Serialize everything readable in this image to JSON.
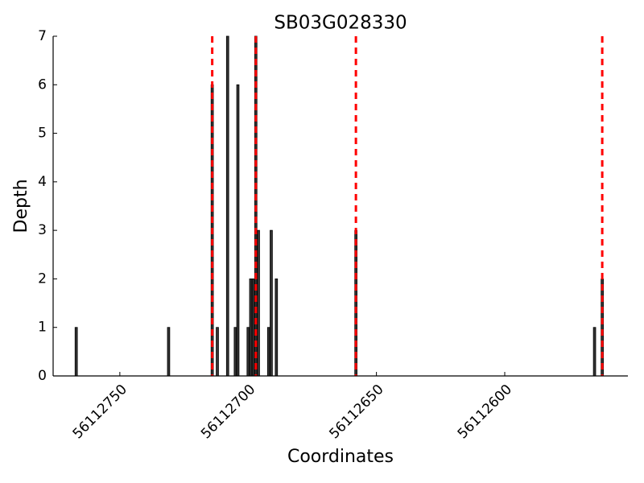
{
  "chart_data": {
    "type": "bar",
    "title": "SB03G028330",
    "x_label": "Coordinates",
    "y_label": "Depth",
    "x": [
      56112767,
      56112731,
      56112714,
      56112712,
      56112708,
      56112705,
      56112704,
      56112700,
      56112699,
      56112698,
      56112697,
      56112696,
      56112692,
      56112691,
      56112689,
      56112658,
      56112565,
      56112562
    ],
    "values": [
      1,
      1,
      6,
      1,
      7,
      1,
      6,
      1,
      2,
      2,
      7,
      3,
      1,
      3,
      2,
      3,
      1,
      2
    ],
    "color": "#333333",
    "vlines": {
      "x": [
        56112714,
        56112697,
        56112658,
        56112562
      ],
      "color": "#ff0000",
      "style": "dashed"
    },
    "xlim": [
      56112776,
      56112552
    ],
    "xticks": [
      56112750,
      56112700,
      56112650,
      56112600
    ],
    "ylim": [
      0,
      7
    ],
    "yticks": [
      0,
      1,
      2,
      3,
      4,
      5,
      6,
      7
    ],
    "grid": false
  }
}
